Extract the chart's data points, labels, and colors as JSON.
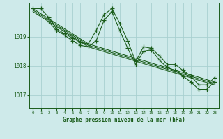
{
  "title": "Graphe pression niveau de la mer (hPa)",
  "bg_color": "#ceeaea",
  "grid_color": "#a8d0d0",
  "line_color": "#1a5c1a",
  "xlim": [
    -0.5,
    23.5
  ],
  "ylim": [
    1016.55,
    1020.15
  ],
  "yticks": [
    1017,
    1018,
    1019
  ],
  "xticks": [
    0,
    1,
    2,
    3,
    4,
    5,
    6,
    7,
    8,
    9,
    10,
    11,
    12,
    13,
    14,
    15,
    16,
    17,
    18,
    19,
    20,
    21,
    22,
    23
  ],
  "series1_x": [
    0,
    1,
    2,
    3,
    4,
    5,
    6,
    7,
    8,
    9,
    10,
    11,
    12,
    13,
    14,
    15,
    16,
    17,
    18,
    19,
    20,
    21,
    22,
    23
  ],
  "series1_y": [
    1019.95,
    1019.95,
    1019.65,
    1019.25,
    1019.1,
    1018.95,
    1018.8,
    1018.75,
    1019.2,
    1019.75,
    1019.95,
    1019.45,
    1018.85,
    1018.15,
    1018.65,
    1018.6,
    1018.35,
    1018.05,
    1018.05,
    1017.85,
    1017.65,
    1017.35,
    1017.35,
    1017.6
  ],
  "series2_x": [
    2,
    3,
    4,
    5,
    6,
    7,
    8,
    9,
    10,
    11,
    12,
    13,
    14,
    15,
    16,
    17,
    18,
    19,
    20,
    21,
    22,
    23
  ],
  "series2_y": [
    1019.5,
    1019.2,
    1019.05,
    1018.85,
    1018.7,
    1018.65,
    1018.85,
    1019.55,
    1019.85,
    1019.2,
    1018.6,
    1018.05,
    1018.5,
    1018.55,
    1018.2,
    1017.95,
    1017.85,
    1017.65,
    1017.45,
    1017.2,
    1017.2,
    1017.45
  ],
  "trend1_x": [
    0,
    7,
    23
  ],
  "trend1_y": [
    1019.95,
    1018.75,
    1017.45
  ],
  "trend2_x": [
    0,
    7,
    23
  ],
  "trend2_y": [
    1019.85,
    1018.65,
    1017.35
  ],
  "trend3_x": [
    0,
    7,
    23
  ],
  "trend3_y": [
    1019.9,
    1018.7,
    1017.4
  ]
}
